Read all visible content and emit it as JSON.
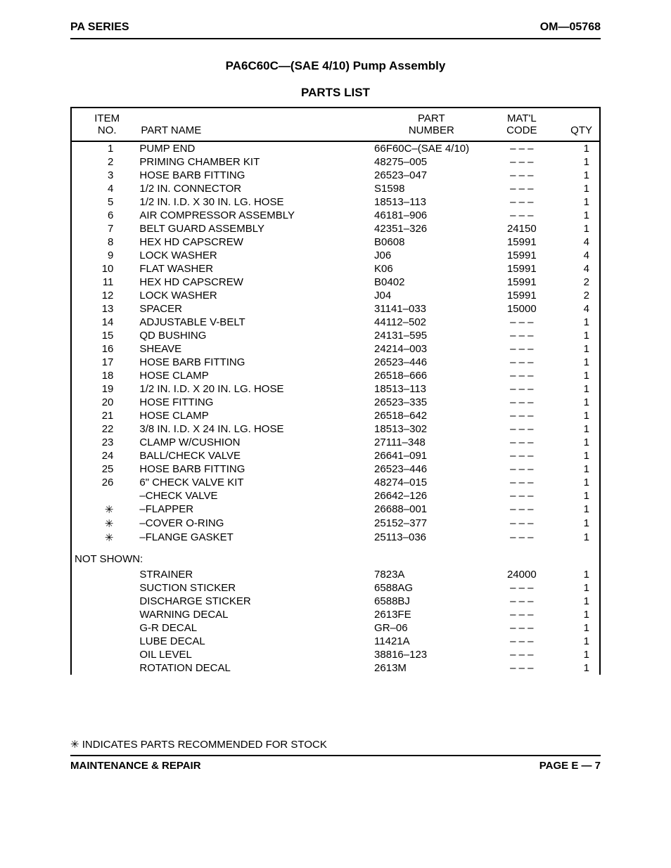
{
  "header": {
    "left": "PA SERIES",
    "right": "OM—05768"
  },
  "title": "PA6C60C—(SAE 4/10) Pump Assembly",
  "subtitle": "PARTS LIST",
  "columns": {
    "item": "ITEM\nNO.",
    "name": "PART NAME",
    "part": "PART\nNUMBER",
    "matl": "MAT'L\nCODE",
    "qty": "QTY"
  },
  "rows": [
    {
      "item": "1",
      "name": "PUMP END",
      "part": "66F60C–(SAE 4/10)",
      "matl": "– – –",
      "qty": "1"
    },
    {
      "item": "2",
      "name": "PRIMING CHAMBER KIT",
      "part": "48275–005",
      "matl": "– – –",
      "qty": "1"
    },
    {
      "item": "3",
      "name": "HOSE BARB FITTING",
      "part": "26523–047",
      "matl": "– – –",
      "qty": "1"
    },
    {
      "item": "4",
      "name": "1/2 IN. CONNECTOR",
      "part": "S1598",
      "matl": "– – –",
      "qty": "1"
    },
    {
      "item": "5",
      "name": "1/2 IN. I.D. X 30 IN. LG. HOSE",
      "part": "18513–113",
      "matl": "– – –",
      "qty": "1"
    },
    {
      "item": "6",
      "name": "AIR COMPRESSOR ASSEMBLY",
      "part": "46181–906",
      "matl": "– – –",
      "qty": "1"
    },
    {
      "item": "7",
      "name": "BELT GUARD ASSEMBLY",
      "part": "42351–326",
      "matl": "24150",
      "qty": "1"
    },
    {
      "item": "8",
      "name": "HEX HD CAPSCREW",
      "part": "B0608",
      "matl": "15991",
      "qty": "4"
    },
    {
      "item": "9",
      "name": "LOCK WASHER",
      "part": "J06",
      "matl": "15991",
      "qty": "4"
    },
    {
      "item": "10",
      "name": "FLAT WASHER",
      "part": "K06",
      "matl": "15991",
      "qty": "4"
    },
    {
      "item": "11",
      "name": "HEX HD CAPSCREW",
      "part": "B0402",
      "matl": "15991",
      "qty": "2"
    },
    {
      "item": "12",
      "name": "LOCK WASHER",
      "part": "J04",
      "matl": "15991",
      "qty": "2"
    },
    {
      "item": "13",
      "name": "SPACER",
      "part": "31141–033",
      "matl": "15000",
      "qty": "4"
    },
    {
      "item": "14",
      "name": "ADJUSTABLE V-BELT",
      "part": "44112–502",
      "matl": "– – –",
      "qty": "1"
    },
    {
      "item": "15",
      "name": "QD BUSHING",
      "part": "24131–595",
      "matl": "– – –",
      "qty": "1"
    },
    {
      "item": "16",
      "name": "SHEAVE",
      "part": "24214–003",
      "matl": "– – –",
      "qty": "1"
    },
    {
      "item": "17",
      "name": "HOSE BARB FITTING",
      "part": "26523–446",
      "matl": "– – –",
      "qty": "1"
    },
    {
      "item": "18",
      "name": "HOSE CLAMP",
      "part": "26518–666",
      "matl": "– – –",
      "qty": "1"
    },
    {
      "item": "19",
      "name": "1/2 IN. I.D. X 20 IN. LG. HOSE",
      "part": "18513–113",
      "matl": "– – –",
      "qty": "1"
    },
    {
      "item": "20",
      "name": "HOSE FITTING",
      "part": "26523–335",
      "matl": "– – –",
      "qty": "1"
    },
    {
      "item": "21",
      "name": "HOSE CLAMP",
      "part": "26518–642",
      "matl": "– – –",
      "qty": "1"
    },
    {
      "item": "22",
      "name": "3/8 IN. I.D. X 24 IN. LG. HOSE",
      "part": "18513–302",
      "matl": "– – –",
      "qty": "1"
    },
    {
      "item": "23",
      "name": "CLAMP W/CUSHION",
      "part": "27111–348",
      "matl": "– – –",
      "qty": "1"
    },
    {
      "item": "24",
      "name": "BALL/CHECK VALVE",
      "part": "26641–091",
      "matl": "– – –",
      "qty": "1"
    },
    {
      "item": "25",
      "name": "HOSE BARB FITTING",
      "part": "26523–446",
      "matl": "– – –",
      "qty": "1"
    },
    {
      "item": "26",
      "name": "6\" CHECK VALVE KIT",
      "part": "48274–015",
      "matl": "– – –",
      "qty": "1"
    },
    {
      "item": "",
      "name": "–CHECK VALVE",
      "part": "26642–126",
      "matl": "– – –",
      "qty": "1"
    },
    {
      "item": "✳",
      "name": "–FLAPPER",
      "part": "26688–001",
      "matl": "– – –",
      "qty": "1"
    },
    {
      "item": "✳",
      "name": "–COVER O-RING",
      "part": "25152–377",
      "matl": "– – –",
      "qty": "1"
    },
    {
      "item": "✳",
      "name": "–FLANGE GASKET",
      "part": "25113–036",
      "matl": "– – –",
      "qty": "1"
    }
  ],
  "not_shown_label": "NOT SHOWN:",
  "not_shown_rows": [
    {
      "item": "",
      "name": "STRAINER",
      "part": "7823A",
      "matl": "24000",
      "qty": "1"
    },
    {
      "item": "",
      "name": "SUCTION STICKER",
      "part": "6588AG",
      "matl": "– – –",
      "qty": "1"
    },
    {
      "item": "",
      "name": "DISCHARGE STICKER",
      "part": "6588BJ",
      "matl": "– – –",
      "qty": "1"
    },
    {
      "item": "",
      "name": "WARNING DECAL",
      "part": "2613FE",
      "matl": "– – –",
      "qty": "1"
    },
    {
      "item": "",
      "name": "G-R DECAL",
      "part": "GR–06",
      "matl": "– – –",
      "qty": "1"
    },
    {
      "item": "",
      "name": "LUBE DECAL",
      "part": "11421A",
      "matl": "– – –",
      "qty": "1"
    },
    {
      "item": "",
      "name": "OIL LEVEL",
      "part": "38816–123",
      "matl": "– – –",
      "qty": "1"
    },
    {
      "item": "",
      "name": "ROTATION DECAL",
      "part": "2613M",
      "matl": "– – –",
      "qty": "1"
    }
  ],
  "footnote": "✳ INDICATES PARTS RECOMMENDED FOR STOCK",
  "footer": {
    "left": "MAINTENANCE & REPAIR",
    "right": "PAGE E — 7"
  }
}
